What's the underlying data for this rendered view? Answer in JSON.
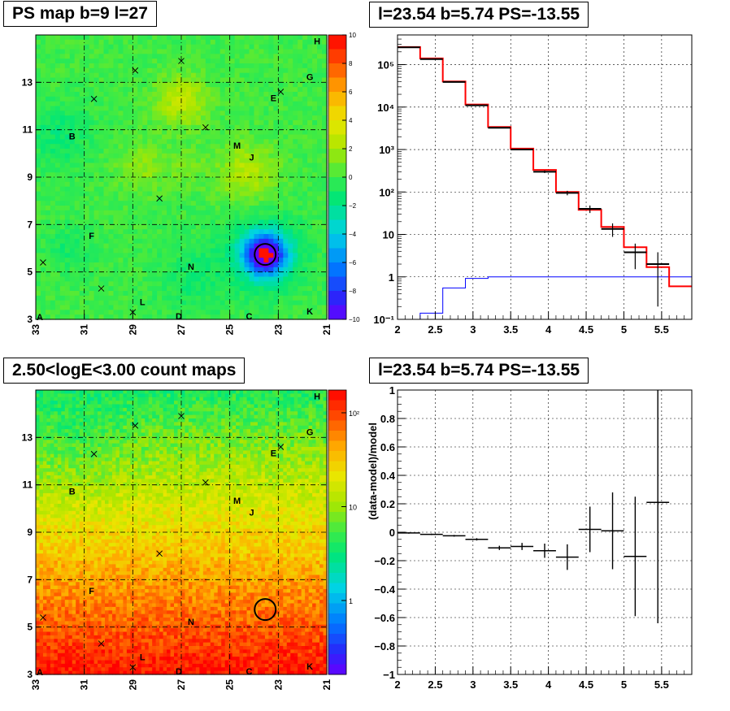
{
  "titles": {
    "tl": "PS map b=9 l=27",
    "tr": "l=23.54 b=5.74 PS=-13.55",
    "bl": "2.50<logE<3.00 count maps",
    "br": "l=23.54 b=5.74 PS=-13.55"
  },
  "colors": {
    "hist_red": "#ff0000",
    "hist_black": "#000000",
    "hist_blue": "#0000ff"
  },
  "chart_data": [
    {
      "type": "heatmap",
      "title": "PS map b=9 l=27",
      "x_ticks": [
        "33",
        "31",
        "29",
        "27",
        "25",
        "23",
        "21"
      ],
      "y_ticks": [
        "3",
        "5",
        "7",
        "9",
        "11",
        "13"
      ],
      "corner_label": "A",
      "colorbar_ticks": [
        "10",
        "8",
        "6",
        "4",
        "2",
        "0",
        "−2",
        "−4",
        "−6",
        "−8",
        "−10"
      ],
      "zlim": [
        -10,
        10
      ],
      "source_labels": [
        {
          "text": "B",
          "l": 31.5,
          "b": 10.6
        },
        {
          "text": "H",
          "l": 21.4,
          "b": 14.6
        },
        {
          "text": "G",
          "l": 21.7,
          "b": 13.1
        },
        {
          "text": "E",
          "l": 23.2,
          "b": 12.2
        },
        {
          "text": "M",
          "l": 24.7,
          "b": 10.2
        },
        {
          "text": "J",
          "l": 24.1,
          "b": 9.7
        },
        {
          "text": "F",
          "l": 30.7,
          "b": 6.4
        },
        {
          "text": "N",
          "l": 26.6,
          "b": 5.1
        },
        {
          "text": "L",
          "l": 28.6,
          "b": 3.6
        },
        {
          "text": "K",
          "l": 21.7,
          "b": 3.2
        },
        {
          "text": "C",
          "l": 24.2,
          "b": 3.0
        },
        {
          "text": "D",
          "l": 27.1,
          "b": 3.0
        }
      ],
      "cross_markers": [
        {
          "l": 30.6,
          "b": 12.3
        },
        {
          "l": 28.9,
          "b": 13.5
        },
        {
          "l": 27.0,
          "b": 13.9
        },
        {
          "l": 26.0,
          "b": 11.1
        },
        {
          "l": 22.9,
          "b": 12.6
        },
        {
          "l": 27.9,
          "b": 8.1
        },
        {
          "l": 32.7,
          "b": 5.4
        },
        {
          "l": 30.3,
          "b": 4.3
        },
        {
          "l": 29.0,
          "b": 3.3
        }
      ],
      "circle": {
        "l": 23.54,
        "b": 5.74
      }
    },
    {
      "type": "line",
      "title": "l=23.54 b=5.74 PS=-13.55",
      "x_scale": "linear",
      "y_scale": "log",
      "xlim": [
        2,
        5.9
      ],
      "ylim": [
        0.1,
        500000
      ],
      "x_ticks": [
        "2",
        "2.5",
        "3",
        "3.5",
        "4",
        "4.5",
        "5",
        "5.5"
      ],
      "y_ticks": [
        "10⁻¹",
        "1",
        "10",
        "10²",
        "10³",
        "10⁴",
        "10⁵"
      ],
      "bin_edges": [
        2.0,
        2.3,
        2.6,
        2.9,
        3.2,
        3.5,
        3.8,
        4.1,
        4.4,
        4.7,
        5.0,
        5.3,
        5.6,
        5.9
      ],
      "series": [
        {
          "color": "red",
          "values": [
            260000,
            140000,
            40000,
            11500,
            3400,
            1050,
            330,
            100,
            38,
            15,
            5,
            1.7,
            0.6
          ]
        },
        {
          "color": "black",
          "values": [
            255000,
            135000,
            39000,
            11000,
            3250,
            1000,
            300,
            95,
            40,
            13.5,
            3.8,
            2.0,
            null
          ],
          "errors": [
            0.01,
            0.01,
            0.01,
            0.02,
            0.03,
            0.04,
            0.07,
            0.12,
            0.2,
            0.35,
            0.6,
            0.9,
            null
          ]
        },
        {
          "color": "blue",
          "values": [
            0.04,
            0.14,
            0.55,
            0.92,
            1.0,
            1.0,
            1.0,
            1.0,
            1.0,
            1.0,
            1.0,
            1.0,
            1.0
          ]
        }
      ]
    },
    {
      "type": "heatmap",
      "title": "2.50<logE<3.00 count maps",
      "x_ticks": [
        "33",
        "31",
        "29",
        "27",
        "25",
        "23",
        "21"
      ],
      "y_ticks": [
        "3",
        "5",
        "7",
        "9",
        "11",
        "13"
      ],
      "corner_label": "A",
      "colorbar_ticks": [
        "10²",
        "10",
        "1"
      ],
      "z_scale": "log"
    },
    {
      "type": "scatter",
      "title": "l=23.54 b=5.74 PS=-13.55",
      "ylabel": "(data-model)/model",
      "xlim": [
        2,
        5.9
      ],
      "ylim": [
        -1,
        1
      ],
      "x_ticks": [
        "2",
        "2.5",
        "3",
        "3.5",
        "4",
        "4.5",
        "5",
        "5.5"
      ],
      "y_ticks": [
        "1",
        "0.8",
        "0.6",
        "0.4",
        "0.2",
        "0",
        "−0.2",
        "−0.4",
        "−0.6",
        "−0.8",
        "−1"
      ],
      "points": [
        {
          "x": 2.15,
          "y": -0.005,
          "xerr": 0.15,
          "yerr": 0.005
        },
        {
          "x": 2.45,
          "y": -0.015,
          "xerr": 0.15,
          "yerr": 0.005
        },
        {
          "x": 2.75,
          "y": -0.025,
          "xerr": 0.15,
          "yerr": 0.006
        },
        {
          "x": 3.05,
          "y": -0.05,
          "xerr": 0.15,
          "yerr": 0.008
        },
        {
          "x": 3.35,
          "y": -0.11,
          "xerr": 0.15,
          "yerr": 0.015
        },
        {
          "x": 3.65,
          "y": -0.1,
          "xerr": 0.15,
          "yerr": 0.025
        },
        {
          "x": 3.95,
          "y": -0.13,
          "xerr": 0.15,
          "yerr": 0.05
        },
        {
          "x": 4.25,
          "y": -0.175,
          "xerr": 0.15,
          "yerr": 0.09
        },
        {
          "x": 4.55,
          "y": 0.02,
          "xerr": 0.15,
          "yerr": 0.16
        },
        {
          "x": 4.85,
          "y": 0.01,
          "xerr": 0.15,
          "yerr": 0.27
        },
        {
          "x": 5.15,
          "y": -0.17,
          "xerr": 0.15,
          "yerr": 0.42
        },
        {
          "x": 5.45,
          "y": 0.21,
          "xerr": 0.15,
          "yerr": 0.85
        }
      ]
    }
  ]
}
